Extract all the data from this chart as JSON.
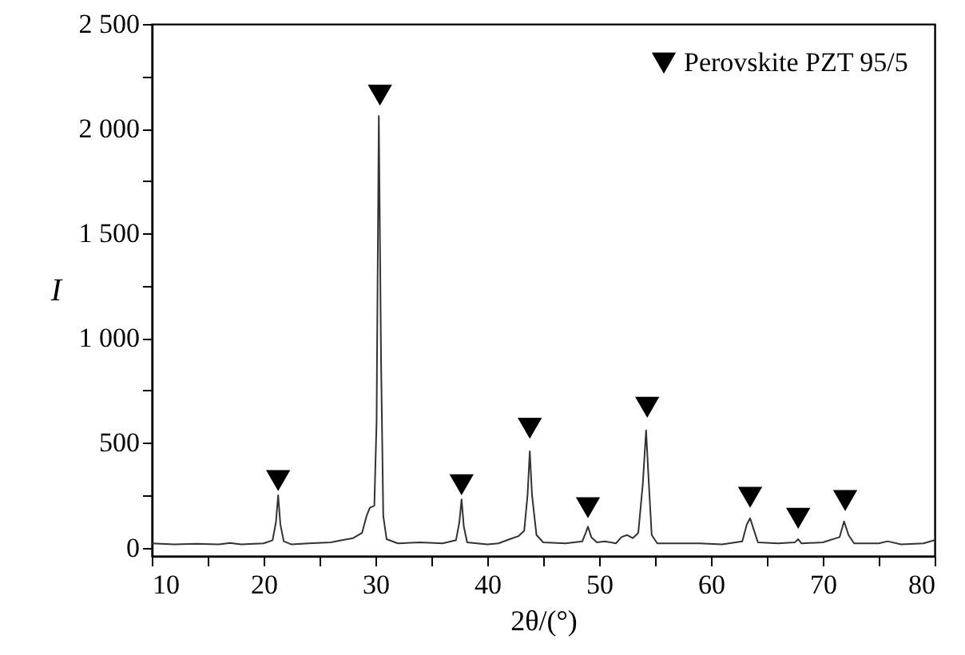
{
  "chart_data": {
    "type": "line",
    "xlabel": "2θ/(°)",
    "ylabel": "I",
    "xlim": [
      10,
      80
    ],
    "ylim": [
      -40,
      2500
    ],
    "xticks": [
      10,
      {
        "value": 15,
        "label": null
      },
      20,
      {
        "value": 25,
        "label": null
      },
      30,
      {
        "value": 35,
        "label": null
      },
      40,
      {
        "value": 45,
        "label": null
      },
      50,
      {
        "value": 55,
        "label": null
      },
      60,
      {
        "value": 65,
        "label": null
      },
      70,
      {
        "value": 75,
        "label": null
      },
      80
    ],
    "yticks": [
      0,
      {
        "value": 250,
        "label": null
      },
      500,
      {
        "value": 750,
        "label": null
      },
      {
        "value": 1000,
        "label": "1 000"
      },
      {
        "value": 1250,
        "label": null
      },
      {
        "value": 1500,
        "label": "1 500"
      },
      {
        "value": 1750,
        "label": null
      },
      {
        "value": 2000,
        "label": "2 000"
      },
      {
        "value": 2250,
        "label": null
      },
      {
        "value": 2500,
        "label": "2 500"
      }
    ],
    "grid": false,
    "legend": "top right",
    "series": [
      {
        "color": "#333333",
        "x": [
          10,
          12,
          14,
          16,
          17,
          18,
          20,
          20.8,
          21.1,
          21.3,
          21.5,
          21.8,
          22.5,
          24,
          26,
          27,
          28,
          28.8,
          29.2,
          29.5,
          29.9,
          30.1,
          30.3,
          30.5,
          30.7,
          31,
          32,
          34,
          36,
          37.2,
          37.5,
          37.7,
          37.9,
          38.2,
          40,
          41,
          42,
          42.8,
          43.3,
          43.6,
          43.8,
          44,
          44.4,
          45,
          47,
          48.5,
          48.8,
          49,
          49.3,
          49.8,
          50.5,
          51.5,
          52,
          52.5,
          53,
          53.5,
          53.9,
          54.2,
          54.4,
          54.7,
          55.2,
          57,
          59,
          61,
          62.8,
          63.2,
          63.5,
          63.8,
          64.2,
          66,
          67.5,
          67.8,
          68.1,
          70,
          71.5,
          71.9,
          72.3,
          72.8,
          75,
          75.8,
          77,
          79,
          80
        ],
        "values": [
          20,
          15,
          18,
          15,
          22,
          15,
          20,
          35,
          120,
          250,
          110,
          30,
          15,
          20,
          25,
          35,
          45,
          70,
          150,
          190,
          200,
          600,
          2060,
          900,
          150,
          40,
          20,
          25,
          20,
          35,
          120,
          230,
          100,
          25,
          15,
          20,
          40,
          55,
          80,
          250,
          460,
          250,
          60,
          25,
          20,
          30,
          70,
          100,
          50,
          25,
          30,
          20,
          50,
          60,
          45,
          70,
          300,
          560,
          350,
          60,
          20,
          20,
          20,
          15,
          30,
          110,
          140,
          90,
          25,
          20,
          25,
          40,
          20,
          25,
          50,
          125,
          60,
          20,
          20,
          30,
          15,
          20,
          35
        ]
      },
      {
        "type": "scatter",
        "name": "Perovskite PZT 95/5",
        "color": "#000000",
        "marker": "triangle",
        "x": [
          21.3,
          30.4,
          37.7,
          43.8,
          49,
          54.3,
          63.5,
          67.8,
          72
        ],
        "values": [
          320,
          2160,
          300,
          570,
          190,
          670,
          240,
          140,
          225
        ]
      }
    ]
  }
}
